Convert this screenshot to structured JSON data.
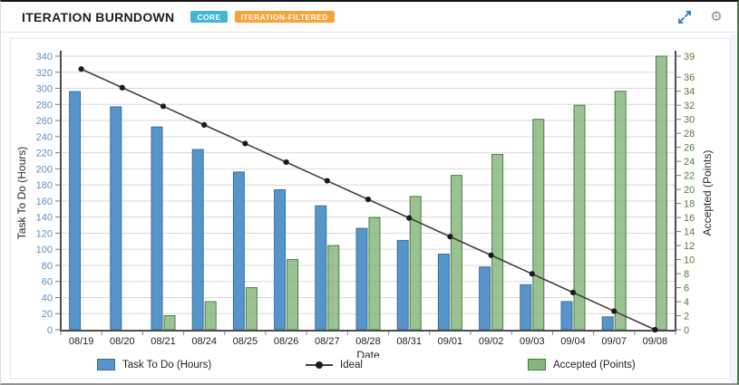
{
  "header": {
    "title": "ITERATION BURNDOWN",
    "badges": [
      {
        "label": "CORE",
        "color": "#41b5d3"
      },
      {
        "label": "ITERATION-FILTERED",
        "color": "#f5a33a"
      }
    ],
    "icons": {
      "expand": "expand-icon",
      "settings": "gear-icon",
      "gear_glyph": "⚙",
      "expand_color": "#2f74bf",
      "gear_color": "#8d8d8d"
    }
  },
  "chart_data": {
    "type": "combo-bar-line",
    "title": "",
    "categories": [
      "08/19",
      "08/20",
      "08/21",
      "08/24",
      "08/25",
      "08/26",
      "08/27",
      "08/28",
      "08/31",
      "09/01",
      "09/02",
      "09/03",
      "09/04",
      "09/07",
      "09/08"
    ],
    "series": [
      {
        "name": "Task To Do (Hours)",
        "type": "bar",
        "axis": "left",
        "color": "#5695ca",
        "border": "#3a6e9e",
        "values": [
          296,
          277,
          252,
          224,
          196,
          174,
          154,
          126,
          111,
          94,
          78,
          56,
          35,
          16,
          0
        ]
      },
      {
        "name": "Ideal",
        "type": "line",
        "axis": "left",
        "color": "#3f3f3f",
        "marker_color": "#1b1b1b",
        "values": [
          324,
          300.86,
          277.71,
          254.57,
          231.43,
          208.29,
          185.14,
          162,
          138.86,
          115.71,
          92.57,
          69.43,
          46.29,
          23.14,
          0
        ]
      },
      {
        "name": "Accepted (Points)",
        "type": "bar",
        "axis": "right",
        "color": "#84b57b",
        "border": "#4b7c43",
        "values": [
          0,
          0,
          2,
          4,
          6,
          10,
          12,
          16,
          19,
          22,
          25,
          30,
          32,
          34,
          39
        ]
      }
    ],
    "xlabel": "Date",
    "axes": {
      "left": {
        "label": "Task To Do (Hours)",
        "min": 0,
        "max": 340,
        "tick_interval": 20,
        "label_color": "#6090c0",
        "title_color": "#2a2a2a"
      },
      "right": {
        "label": "Accepted (Points)",
        "min": 0,
        "max": 39,
        "tick_interval": 2,
        "extra_top_tick": 39,
        "label_color": "#537d3d",
        "title_color": "#2a2a2a"
      }
    },
    "grid": true,
    "grid_color": "#d9d9d9",
    "axis_line_color": "#4d4d4d",
    "x_label_color": "#1f1f1f",
    "legend_position": "bottom",
    "legend": [
      "Task To Do (Hours)",
      "Ideal",
      "Accepted (Points)"
    ]
  }
}
